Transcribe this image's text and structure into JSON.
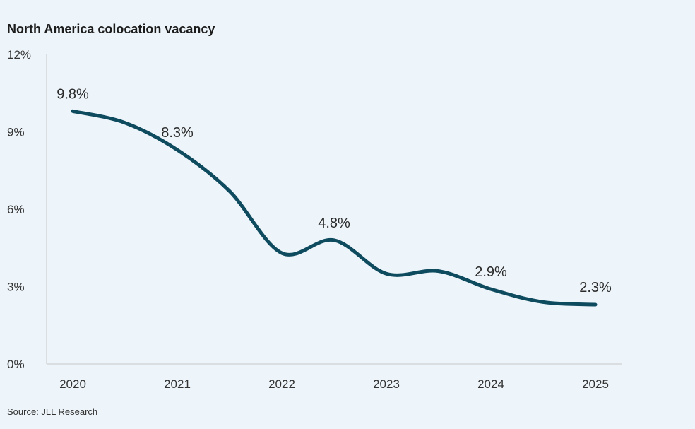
{
  "chart_data": {
    "type": "line",
    "title": "North America colocation vacancy",
    "source": "Source: JLL Research",
    "x_ticks": [
      "2020",
      "2021",
      "2022",
      "2023",
      "2024",
      "2025"
    ],
    "y_ticks": [
      "0%",
      "3%",
      "6%",
      "9%",
      "12%"
    ],
    "y_tick_values": [
      0,
      3,
      6,
      9,
      12
    ],
    "ylim": [
      0,
      12
    ],
    "xlim": [
      2020,
      2025
    ],
    "series": [
      {
        "color": "#0f4b5f",
        "points": [
          {
            "x": 2020.0,
            "y": 9.8
          },
          {
            "x": 2020.5,
            "y": 9.35
          },
          {
            "x": 2021.0,
            "y": 8.3
          },
          {
            "x": 2021.5,
            "y": 6.7
          },
          {
            "x": 2022.0,
            "y": 4.3
          },
          {
            "x": 2022.5,
            "y": 4.8
          },
          {
            "x": 2023.0,
            "y": 3.5
          },
          {
            "x": 2023.5,
            "y": 3.6
          },
          {
            "x": 2024.0,
            "y": 2.9
          },
          {
            "x": 2024.5,
            "y": 2.4
          },
          {
            "x": 2025.0,
            "y": 2.3
          }
        ]
      }
    ],
    "data_labels": [
      {
        "x": 2020.0,
        "y": 9.8,
        "text": "9.8%"
      },
      {
        "x": 2021.0,
        "y": 8.3,
        "text": "8.3%"
      },
      {
        "x": 2022.5,
        "y": 4.8,
        "text": "4.8%"
      },
      {
        "x": 2024.0,
        "y": 2.9,
        "text": "2.9%"
      },
      {
        "x": 2025.0,
        "y": 2.3,
        "text": "2.3%"
      }
    ],
    "grid": false,
    "legend": "none"
  }
}
